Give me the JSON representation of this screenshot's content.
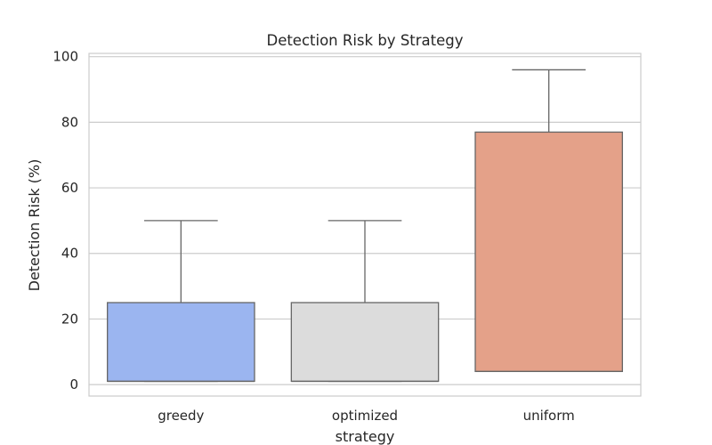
{
  "chart_data": {
    "type": "box",
    "title": "Detection Risk by Strategy",
    "xlabel": "strategy",
    "ylabel": "Detection Risk (%)",
    "ylim": [
      -3.5,
      101
    ],
    "yticks": [
      0,
      20,
      40,
      60,
      80,
      100
    ],
    "grid": true,
    "categories": [
      "greedy",
      "optimized",
      "uniform"
    ],
    "boxes": [
      {
        "category": "greedy",
        "whisker_low": 1,
        "q1": 1,
        "median": 1,
        "q3": 25,
        "whisker_high": 50,
        "color": "#9bb5f0"
      },
      {
        "category": "optimized",
        "whisker_low": 1,
        "q1": 1,
        "median": 1,
        "q3": 25,
        "whisker_high": 50,
        "color": "#dcdcdc"
      },
      {
        "category": "uniform",
        "whisker_low": 4,
        "q1": 4,
        "median": 4,
        "q3": 77,
        "whisker_high": 96,
        "color": "#e4a189"
      }
    ]
  }
}
